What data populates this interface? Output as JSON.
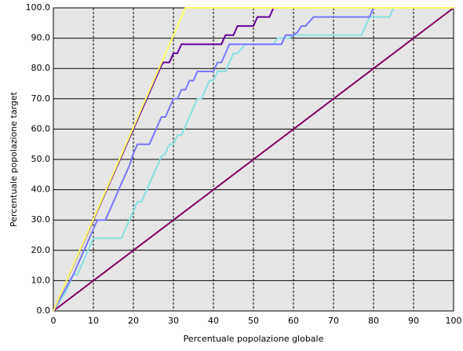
{
  "chart_data": {
    "type": "line",
    "xlabel": "Percentuale popolazione globale",
    "ylabel": "Percentuale popolazione target",
    "xlim": [
      0,
      100
    ],
    "ylim": [
      0,
      100
    ],
    "xticks": [
      0,
      10,
      20,
      30,
      40,
      50,
      60,
      70,
      80,
      90,
      100
    ],
    "yticks": [
      {
        "value": 0,
        "label": "0.0"
      },
      {
        "value": 10,
        "label": "10.0"
      },
      {
        "value": 20,
        "label": "20.0"
      },
      {
        "value": 30,
        "label": "30.0"
      },
      {
        "value": 40,
        "label": "40.0"
      },
      {
        "value": 50,
        "label": "50.0"
      },
      {
        "value": 60,
        "label": "60.0"
      },
      {
        "value": 70,
        "label": "70.0"
      },
      {
        "value": 80,
        "label": "80.0"
      },
      {
        "value": 90,
        "label": "90.0"
      },
      {
        "value": 100,
        "label": "100.0"
      }
    ],
    "grid": true,
    "series": [
      {
        "color": "#800060",
        "x": [
          0,
          100
        ],
        "values": [
          0,
          100
        ]
      },
      {
        "color": "#88e0e0",
        "x": [
          0,
          3,
          5,
          6,
          8,
          9,
          10,
          17,
          18,
          19,
          20,
          21,
          22,
          23,
          25,
          26,
          27,
          28,
          29,
          30,
          31,
          32,
          33,
          34,
          35,
          36,
          37,
          38,
          39,
          40,
          41,
          43,
          44,
          45,
          46,
          48,
          55,
          56,
          59,
          60,
          77,
          78,
          79,
          84,
          85,
          100
        ],
        "values": [
          0,
          6,
          12,
          12,
          18,
          21,
          24,
          24,
          27,
          30,
          33,
          36,
          36,
          39,
          45,
          48,
          51,
          52,
          55,
          55,
          58,
          58,
          61,
          64,
          67,
          70,
          70,
          73,
          76,
          76,
          79,
          79,
          82,
          85,
          85,
          88,
          88,
          90,
          90,
          91,
          91,
          94,
          97,
          97,
          100,
          100
        ]
      },
      {
        "color": "#7777ff",
        "x": [
          0,
          5,
          9,
          10,
          11,
          13,
          15,
          17,
          19,
          20,
          21,
          24,
          25,
          26,
          27,
          28,
          29,
          30,
          31,
          32,
          33,
          34,
          35,
          36,
          40,
          41,
          42,
          43,
          44,
          57,
          58,
          60,
          61,
          62,
          63,
          65,
          79,
          80,
          100
        ],
        "values": [
          0,
          12,
          24,
          27,
          30,
          30,
          36,
          42,
          48,
          52,
          55,
          55,
          58,
          61,
          64,
          64,
          67,
          70,
          70,
          73,
          73,
          76,
          76,
          79,
          79,
          82,
          82,
          85,
          88,
          88,
          91,
          91,
          92,
          94,
          94,
          97,
          97,
          100,
          100
        ]
      },
      {
        "color": "#660099",
        "x": [
          0,
          23,
          24,
          25,
          26,
          27,
          27.5,
          29,
          30,
          31,
          32,
          33,
          42,
          43,
          45,
          46,
          50,
          51,
          54,
          55,
          100
        ],
        "values": [
          0,
          69,
          72,
          75,
          78,
          81,
          82,
          82,
          85,
          85,
          88,
          88,
          88,
          91,
          91,
          94,
          94,
          97,
          97,
          100,
          100
        ]
      },
      {
        "color": "#ffff66",
        "x": [
          0,
          33,
          100
        ],
        "values": [
          0,
          100,
          100
        ]
      }
    ]
  }
}
